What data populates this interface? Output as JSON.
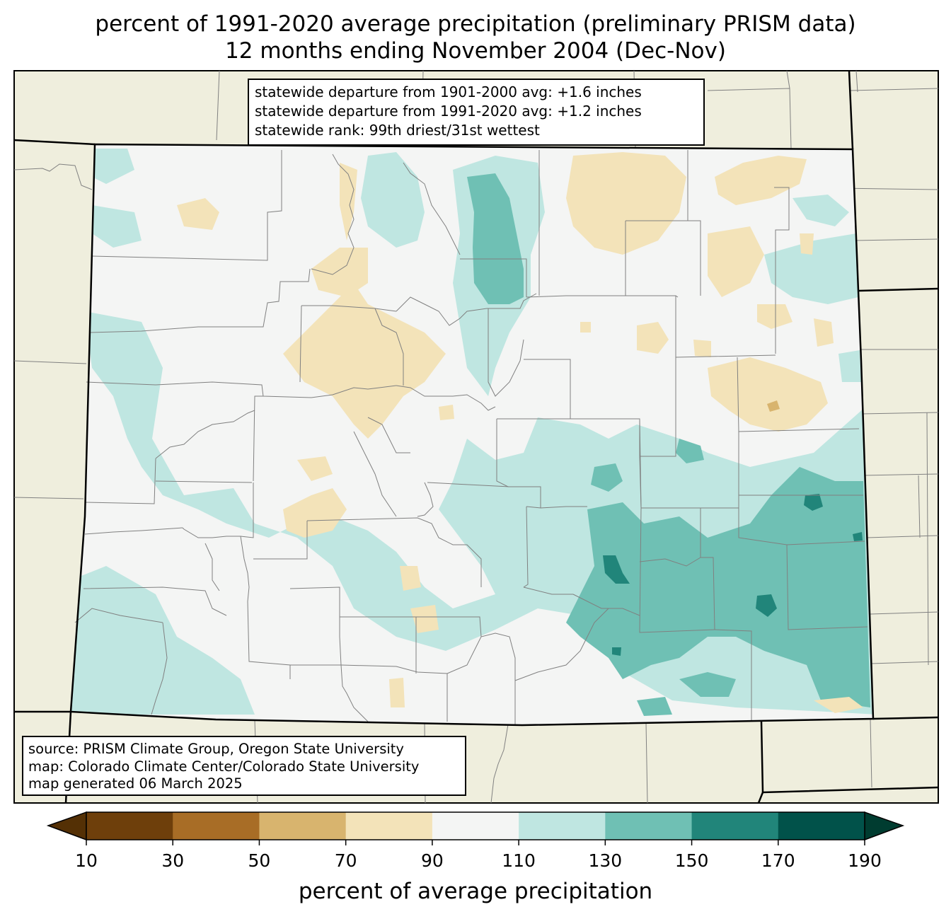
{
  "title": {
    "line1": "percent of 1991-2020 average precipitation (preliminary PRISM data)",
    "line2": "12 months ending November 2004 (Dec-Nov)"
  },
  "stats": {
    "line1": "statewide departure from 1901-2000 avg: +1.6 inches",
    "line2": "statewide departure from 1991-2020 avg: +1.2 inches",
    "line3": "statewide rank: 99th driest/31st wettest"
  },
  "source": {
    "line1": "source: PRISM Climate Group, Oregon State University",
    "line2": "map: Colorado Climate Center/Colorado State University",
    "line3": "map generated 06 March 2025"
  },
  "colorbar": {
    "label": "percent of average precipitation",
    "ticks": [
      "10",
      "30",
      "50",
      "70",
      "90",
      "110",
      "130",
      "150",
      "170",
      "190"
    ],
    "colors": [
      "#6e3f0b",
      "#a86d26",
      "#d8b46e",
      "#f3e3b9",
      "#f4f5f4",
      "#bfe6e1",
      "#6fc0b4",
      "#21857a",
      "#01524a"
    ],
    "under_color": "#543005",
    "over_color": "#003c30"
  },
  "colors": {
    "land_outside": "#efeedd",
    "state_border": "#000000",
    "county_border": "#808080"
  }
}
